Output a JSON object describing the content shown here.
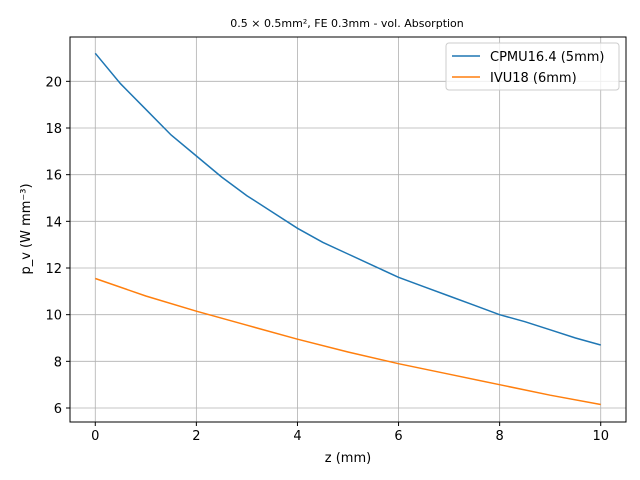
{
  "chart_data": {
    "type": "line",
    "title": "0.5 × 0.5mm², FE 0.3mm - vol. Absorption",
    "xlabel": "z (mm)",
    "ylabel": "p_v (W mm⁻³)",
    "xlim": [
      -0.5,
      10.5
    ],
    "ylim": [
      5.4,
      21.9
    ],
    "xticks": [
      "0",
      "2",
      "4",
      "6",
      "8",
      "10"
    ],
    "yticks": [
      "6",
      "8",
      "10",
      "12",
      "14",
      "16",
      "18",
      "20"
    ],
    "grid": true,
    "legend_position": "top-right",
    "series": [
      {
        "name": "CPMU16.4 (5mm)",
        "color": "#1f77b4",
        "x": [
          0,
          0.5,
          1,
          1.5,
          2,
          2.5,
          3,
          3.5,
          4,
          4.5,
          5,
          5.5,
          6,
          6.5,
          7,
          7.5,
          8,
          8.5,
          9,
          9.5,
          10
        ],
        "y": [
          21.2,
          19.9,
          18.8,
          17.7,
          16.8,
          15.9,
          15.1,
          14.4,
          13.7,
          13.1,
          12.6,
          12.1,
          11.6,
          11.2,
          10.8,
          10.4,
          10.0,
          9.7,
          9.35,
          9.0,
          8.7
        ]
      },
      {
        "name": "IVU18 (6mm)",
        "color": "#ff7f0e",
        "x": [
          0,
          1,
          2,
          3,
          4,
          5,
          6,
          7,
          8,
          9,
          10
        ],
        "y": [
          11.55,
          10.8,
          10.15,
          9.55,
          8.95,
          8.4,
          7.9,
          7.45,
          7.0,
          6.55,
          6.15
        ]
      }
    ]
  }
}
